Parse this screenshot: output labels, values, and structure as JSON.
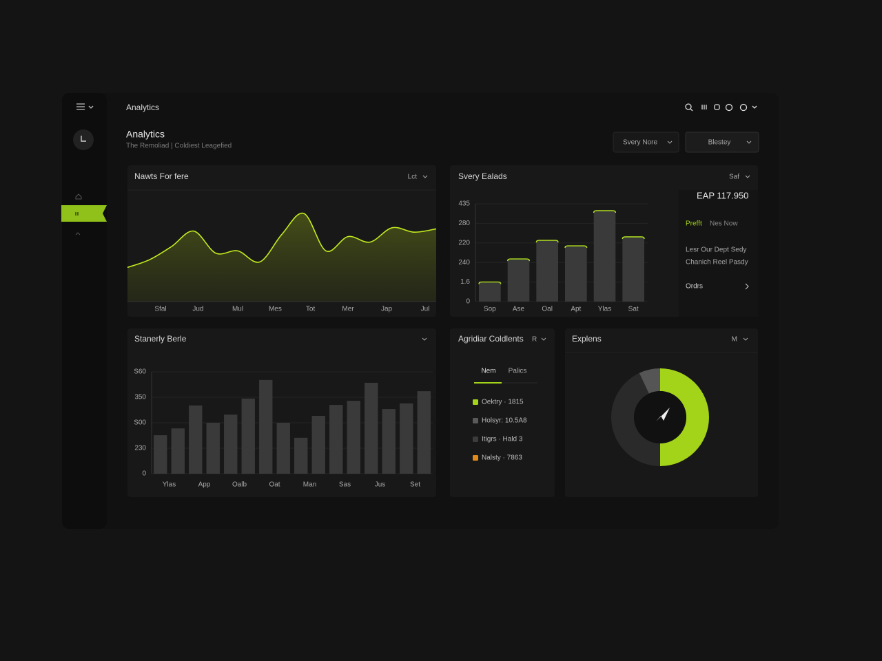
{
  "topbar": {
    "title": "Analytics"
  },
  "header": {
    "title": "Analytics",
    "subtitle": "The Remoliad | Coldiest Leagefied",
    "buttons": [
      "Svery Nore",
      "Blestey"
    ]
  },
  "summary": {
    "value": "EAP 117.950",
    "tag": "Prefft",
    "tag2": "Nes Now",
    "lines": [
      "Lesr Our Dept Sedy",
      "Chanich Reel Pasdy"
    ],
    "link": "Ordrs"
  },
  "legend_card": {
    "title": "Agridiar Coldlents",
    "filter": "R",
    "tabs": [
      "Nem",
      "Palics"
    ],
    "items": [
      {
        "label": "Oektry · 1815",
        "color": "#a4d41a"
      },
      {
        "label": "Holsyr: 10.5A8",
        "color": "#5a5a5a"
      },
      {
        "label": "Itigrs · Hald 3",
        "color": "#3c3c3c"
      },
      {
        "label": "Nalsty · 7863",
        "color": "#e08a1a"
      }
    ]
  },
  "chart_data": [
    {
      "type": "area",
      "title": "Nawts For fere",
      "filter": "Lct",
      "color": "#c2ec1e",
      "x": [
        0,
        1,
        2,
        3,
        4,
        5,
        6,
        7,
        8,
        9,
        10,
        11,
        12,
        13,
        14
      ],
      "values": [
        31,
        38,
        50,
        64,
        44,
        46,
        36,
        61,
        80,
        46,
        59,
        54,
        67,
        63,
        66
      ],
      "xlim": [
        0,
        14
      ],
      "ylim": [
        0,
        100
      ],
      "xticks": [
        {
          "value": 1.5,
          "label": "Sfal"
        },
        {
          "value": 3.2,
          "label": "Jud"
        },
        {
          "value": 5,
          "label": "Mul"
        },
        {
          "value": 6.7,
          "label": "Mes"
        },
        {
          "value": 8.3,
          "label": "Tot"
        },
        {
          "value": 10,
          "label": "Mer"
        },
        {
          "value": 11.75,
          "label": "Jap"
        },
        {
          "value": 13.5,
          "label": "Jul"
        }
      ]
    },
    {
      "type": "bar",
      "title": "Svery Ealads",
      "filter": "Saf",
      "color": "#3a3a3a",
      "edge_color": "#b5e61d",
      "categories": [
        "Sop",
        "Ase",
        "Oal",
        "Apt",
        "Ylas",
        "Sat"
      ],
      "values": [
        100,
        218,
        313,
        285,
        465,
        331
      ],
      "ylim": [
        0,
        500
      ],
      "yticks": [
        0,
        {
          "value": 100,
          "label": "1.6"
        },
        {
          "value": 200,
          "label": "240"
        },
        {
          "value": 300,
          "label": "220"
        },
        {
          "value": 400,
          "label": "280"
        },
        {
          "value": 500,
          "label": "435"
        }
      ],
      "grid": true
    },
    {
      "type": "bar",
      "title": "Stanerly Berle",
      "color": "#3a3a3a",
      "categories": [
        "Ylas",
        null,
        "App",
        null,
        "Oalb",
        null,
        "Oat",
        null,
        "Man",
        null,
        "Sas",
        null,
        "Jus",
        null,
        "Set",
        null
      ],
      "values": [
        151,
        178,
        268,
        200,
        232,
        295,
        368,
        200,
        141,
        227,
        270,
        286,
        357,
        254,
        276,
        324
      ],
      "ylim": [
        0,
        400
      ],
      "yticks": [
        0,
        {
          "value": 100,
          "label": "230"
        },
        {
          "value": 200,
          "label": "S00"
        },
        {
          "value": 300,
          "label": "350"
        },
        {
          "value": 400,
          "label": "S60"
        }
      ],
      "grid": true
    },
    {
      "type": "donut",
      "title": "Explens",
      "filter": "M",
      "values": [
        50,
        43,
        7
      ],
      "colors": [
        "#a4d41a",
        "#2a2a2a",
        "#555555"
      ]
    }
  ]
}
